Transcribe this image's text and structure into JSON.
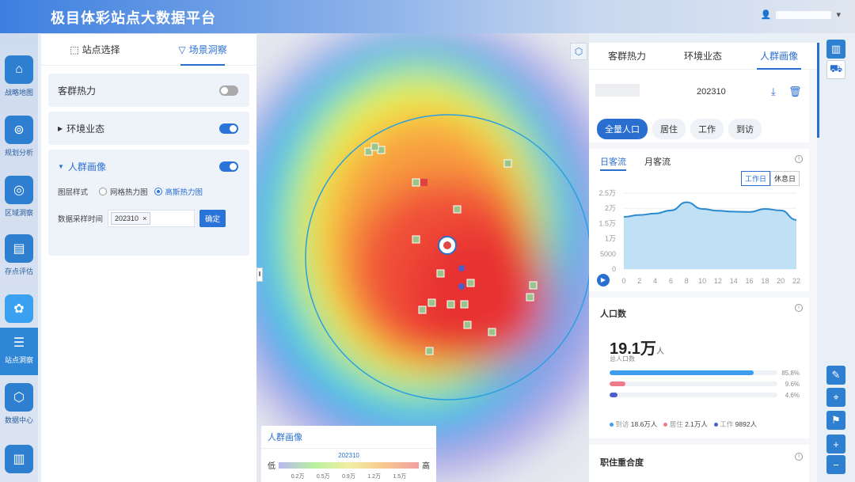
{
  "app": {
    "title": "极目体彩站点大数据平台"
  },
  "rail": [
    {
      "label": "战略地图",
      "icon": "map-chart-icon"
    },
    {
      "label": "规划分析",
      "icon": "location-pin-icon"
    },
    {
      "label": "区域洞察",
      "icon": "target-icon"
    },
    {
      "label": "存点评估",
      "icon": "clipboard-icon"
    },
    {
      "label": "站点洞察",
      "icon": "station-icon"
    },
    {
      "label": "数据中心",
      "icon": "cube-icon"
    }
  ],
  "left": {
    "tabs": [
      {
        "label": "站点选择"
      },
      {
        "label": "场景洞察"
      }
    ],
    "sections": {
      "heat": "客群热力",
      "env": "环境业态",
      "portrait": "人群画像"
    },
    "style_label": "图层样式",
    "opt1": "网格热力图",
    "opt2": "高斯热力图",
    "time_label": "数据采样时间",
    "time_value": "202310",
    "time_x": "×",
    "confirm": "确定"
  },
  "right": {
    "tabs": [
      {
        "label": "客群热力"
      },
      {
        "label": "环境业态"
      },
      {
        "label": "人群画像"
      }
    ],
    "period": "202310",
    "pills": [
      {
        "label": "全量人口"
      },
      {
        "label": "居住"
      },
      {
        "label": "工作"
      },
      {
        "label": "到访"
      }
    ],
    "flow_tabs": [
      {
        "label": "日客流"
      },
      {
        "label": "月客流"
      }
    ],
    "day_toggle": [
      {
        "label": "工作日"
      },
      {
        "label": "休息日"
      }
    ],
    "population": {
      "title": "人口数",
      "value": "19.1万",
      "unit": "人",
      "sub": "总人口数",
      "bars": [
        {
          "pct": "85.8%",
          "frac": 0.858,
          "color": "#3d9ef0"
        },
        {
          "pct": "9.6%",
          "frac": 0.096,
          "color": "#f07a8a"
        },
        {
          "pct": "4.6%",
          "frac": 0.046,
          "color": "#4b5ec9"
        }
      ],
      "legend": [
        {
          "name": "到访",
          "value": "18.6万人",
          "color": "#3d9ef0"
        },
        {
          "name": "居住",
          "value": "2.1万人",
          "color": "#f07a8a"
        },
        {
          "name": "工作",
          "value": "9892人",
          "color": "#4b5ec9"
        }
      ]
    },
    "overlap_title": "职住重合度"
  },
  "chart_data": {
    "type": "area",
    "x": [
      0,
      2,
      4,
      6,
      8,
      10,
      12,
      14,
      16,
      18,
      20,
      22
    ],
    "series": [
      {
        "values": [
          17200,
          17800,
          18300,
          19300,
          22000,
          19800,
          19200,
          18900,
          18800,
          19800,
          19300,
          16200
        ]
      }
    ],
    "ylim": [
      0,
      25000
    ],
    "yticks": [
      "0",
      "5000",
      "1万",
      "1.5万",
      "2万",
      "2.5万"
    ],
    "xticks": [
      "0",
      "2",
      "4",
      "6",
      "8",
      "10",
      "12",
      "14",
      "16",
      "18",
      "20",
      "22"
    ]
  },
  "map_legend": {
    "title": "人群画像",
    "period": "202310",
    "low": "低",
    "high": "高",
    "ticks": [
      "0.2万",
      "0.5万",
      "0.9万",
      "1.2万",
      "1.5万"
    ]
  }
}
